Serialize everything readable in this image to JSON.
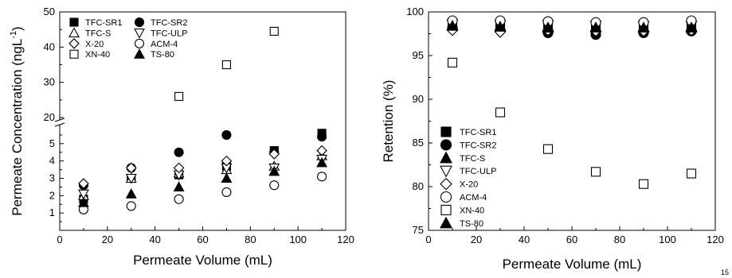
{
  "chart_data": [
    {
      "type": "scatter",
      "xlabel": "Permeate Volume (mL)",
      "ylabel": "Permeate Concentration (ngL",
      "ylabel_sup": "-1",
      "ylabel_close": ")",
      "xlim": [
        0,
        120
      ],
      "xticks": [
        0,
        20,
        40,
        60,
        80,
        100,
        120
      ],
      "broken_axis": true,
      "ylim_lower": [
        0,
        6
      ],
      "yticks_lower": [
        1,
        2,
        3,
        4,
        5
      ],
      "ylim_upper": [
        20,
        50
      ],
      "yticks_upper": [
        20,
        30,
        40,
        50
      ],
      "legend_position": "top-left",
      "legend_columns": 2,
      "series": [
        {
          "name": "TFC-SR1",
          "marker": "square-filled",
          "x": [
            10,
            30,
            50,
            70,
            90,
            110
          ],
          "y": [
            1.8,
            3.0,
            3.2,
            3.7,
            4.6,
            5.6
          ]
        },
        {
          "name": "TFC-SR2",
          "marker": "circle-filled",
          "x": [
            10,
            30,
            50,
            70,
            90,
            110
          ],
          "y": [
            2.6,
            3.6,
            4.5,
            5.5,
            4.5,
            5.4
          ]
        },
        {
          "name": "TFC-S",
          "marker": "triangle-up-open",
          "x": [
            10,
            30,
            50,
            70,
            90,
            110
          ],
          "y": [
            2.0,
            3.0,
            3.3,
            3.5,
            3.7,
            4.3
          ]
        },
        {
          "name": "TFC-ULP",
          "marker": "triangle-down-open",
          "x": [
            10,
            30,
            50,
            70,
            90,
            110
          ],
          "y": [
            2.1,
            3.0,
            3.2,
            3.6,
            3.6,
            4.1
          ]
        },
        {
          "name": "X-20",
          "marker": "diamond-open",
          "x": [
            10,
            30,
            50,
            70,
            90,
            110
          ],
          "y": [
            2.7,
            3.6,
            3.6,
            4.0,
            4.4,
            4.6
          ]
        },
        {
          "name": "ACM-4",
          "marker": "circle-open",
          "x": [
            10,
            30,
            50,
            70,
            90,
            110
          ],
          "y": [
            1.2,
            1.4,
            1.8,
            2.2,
            2.6,
            3.1
          ]
        },
        {
          "name": "XN-40",
          "marker": "square-open",
          "x": [
            50,
            70,
            90
          ],
          "y": [
            26,
            35,
            44.5
          ]
        },
        {
          "name": "TS-80",
          "marker": "triangle-up-filled",
          "x": [
            10,
            30,
            50,
            70,
            90,
            110
          ],
          "y": [
            1.6,
            2.1,
            2.5,
            3.0,
            3.4,
            3.9
          ]
        }
      ]
    },
    {
      "type": "scatter",
      "xlabel": "Permeate Volume (mL)",
      "ylabel": "Retention (%)",
      "xlim": [
        0,
        120
      ],
      "xticks": [
        0,
        20,
        40,
        60,
        80,
        100,
        120
      ],
      "ylim": [
        75,
        100
      ],
      "yticks": [
        75,
        80,
        85,
        90,
        95,
        100
      ],
      "legend_position": "bottom-left",
      "legend_columns": 1,
      "series": [
        {
          "name": "TFC-SR1",
          "marker": "square-filled",
          "x": [
            10,
            30,
            50,
            70,
            90,
            110
          ],
          "y": [
            98.7,
            98.6,
            98.6,
            98.5,
            98.4,
            98.5
          ]
        },
        {
          "name": "TFC-SR2",
          "marker": "circle-filled",
          "x": [
            10,
            30,
            50,
            70,
            90,
            110
          ],
          "y": [
            98.2,
            97.9,
            97.6,
            97.4,
            97.6,
            97.8
          ]
        },
        {
          "name": "TFC-S",
          "marker": "triangle-up-filled",
          "x": [
            10,
            30,
            50,
            70,
            90,
            110
          ],
          "y": [
            98.5,
            98.4,
            98.3,
            98.3,
            98.3,
            98.3
          ]
        },
        {
          "name": "TFC-ULP",
          "marker": "triangle-down-open",
          "x": [
            10,
            30,
            50,
            70,
            90,
            110
          ],
          "y": [
            98.6,
            98.5,
            98.5,
            98.4,
            98.4,
            98.4
          ]
        },
        {
          "name": "X-20",
          "marker": "diamond-open",
          "x": [
            10,
            30,
            50,
            70,
            90,
            110
          ],
          "y": [
            97.9,
            97.7,
            97.9,
            97.8,
            97.8,
            97.9
          ]
        },
        {
          "name": "ACM-4",
          "marker": "circle-open",
          "x": [
            10,
            30,
            50,
            70,
            90,
            110
          ],
          "y": [
            99.0,
            99.0,
            98.9,
            98.8,
            98.8,
            99.0
          ]
        },
        {
          "name": "XN-40",
          "marker": "square-open",
          "x": [
            10,
            30,
            50,
            70,
            90,
            110
          ],
          "y": [
            94.2,
            88.5,
            84.3,
            81.7,
            80.3,
            81.5
          ]
        },
        {
          "name": "TS-80",
          "marker": "triangle-up-filled",
          "x": [
            10,
            30,
            50,
            70,
            90,
            110
          ],
          "y": [
            98.4,
            98.3,
            98.2,
            98.2,
            98.2,
            98.2
          ]
        }
      ]
    }
  ],
  "page_number": "15"
}
